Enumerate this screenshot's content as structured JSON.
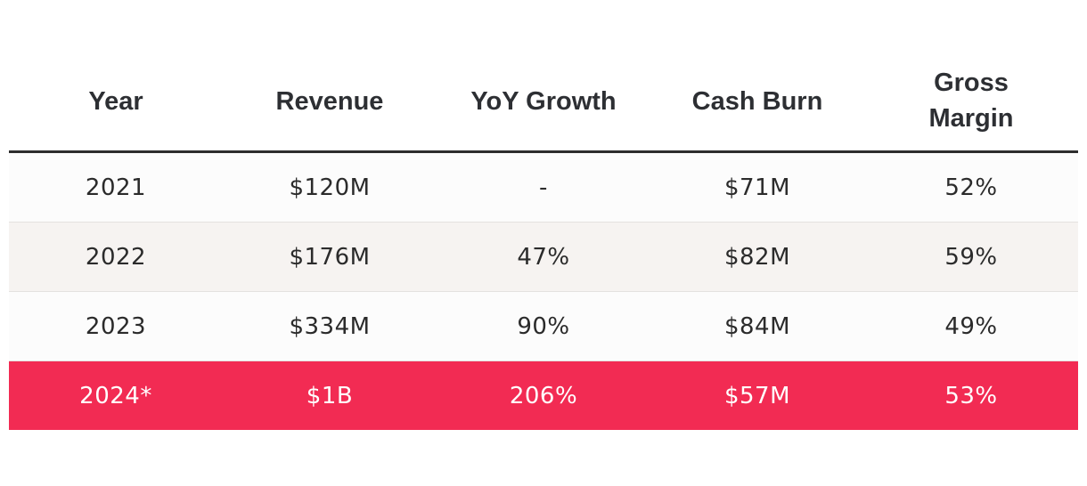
{
  "table": {
    "headers": {
      "year": "Year",
      "revenue": "Revenue",
      "yoy_growth": "YoY Growth",
      "cash_burn": "Cash Burn",
      "gross_margin_line1": "Gross",
      "gross_margin_line2": "Margin"
    },
    "rows": [
      {
        "year": "2021",
        "revenue": "$120M",
        "yoy_growth": "-",
        "cash_burn": "$71M",
        "gross_margin": "52%"
      },
      {
        "year": "2022",
        "revenue": "$176M",
        "yoy_growth": "47%",
        "cash_burn": "$82M",
        "gross_margin": "59%"
      },
      {
        "year": "2023",
        "revenue": "$334M",
        "yoy_growth": "90%",
        "cash_burn": "$84M",
        "gross_margin": "49%"
      },
      {
        "year": "2024*",
        "revenue": "$1B",
        "yoy_growth": "206%",
        "cash_burn": "$57M",
        "gross_margin": "53%"
      }
    ]
  },
  "colors": {
    "highlight": "#f22b53",
    "header_text": "#2d2f33",
    "rule": "#2d2d2d"
  }
}
